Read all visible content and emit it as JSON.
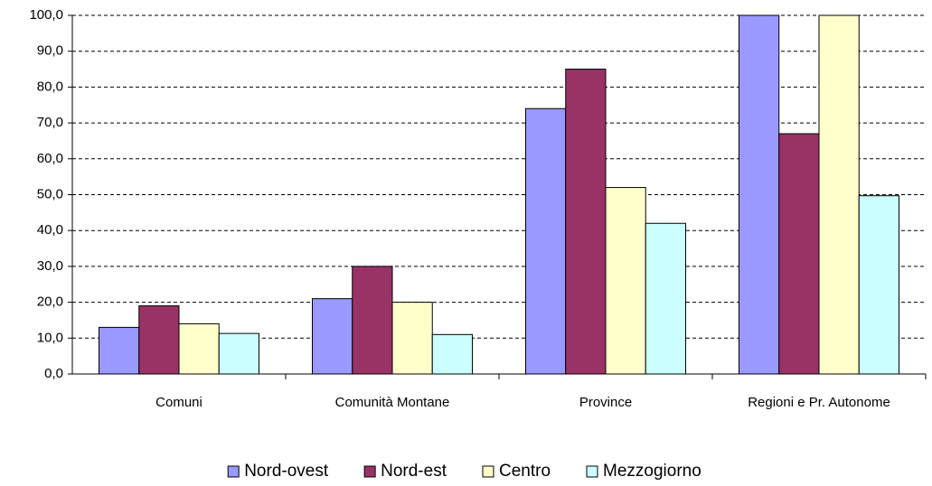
{
  "chart_data": {
    "type": "bar",
    "categories": [
      "Comuni",
      "Comunità Montane",
      "Province",
      "Regioni e Pr. Autonome"
    ],
    "series": [
      {
        "name": "Nord-ovest",
        "color": "#9999ff",
        "values": [
          13,
          21,
          74,
          100
        ]
      },
      {
        "name": "Nord-est",
        "color": "#993366",
        "values": [
          19,
          30,
          85,
          67
        ]
      },
      {
        "name": "Centro",
        "color": "#ffffcc",
        "values": [
          14,
          20,
          52,
          100
        ]
      },
      {
        "name": "Mezzogiorno",
        "color": "#ccffff",
        "values": [
          11.3,
          11,
          42,
          49.7
        ]
      }
    ],
    "ylim": [
      0,
      100
    ],
    "yticks": [
      {
        "value": 0,
        "label": "0,0"
      },
      {
        "value": 10,
        "label": "10,0"
      },
      {
        "value": 20,
        "label": "20,0"
      },
      {
        "value": 30,
        "label": "30,0"
      },
      {
        "value": 40,
        "label": "40,0"
      },
      {
        "value": 50,
        "label": "50,0"
      },
      {
        "value": 60,
        "label": "60,0"
      },
      {
        "value": 70,
        "label": "70,0"
      },
      {
        "value": 80,
        "label": "80,0"
      },
      {
        "value": 90,
        "label": "90,0"
      },
      {
        "value": 100,
        "label": "100,0"
      }
    ],
    "grid": true,
    "legend": "bottom"
  }
}
